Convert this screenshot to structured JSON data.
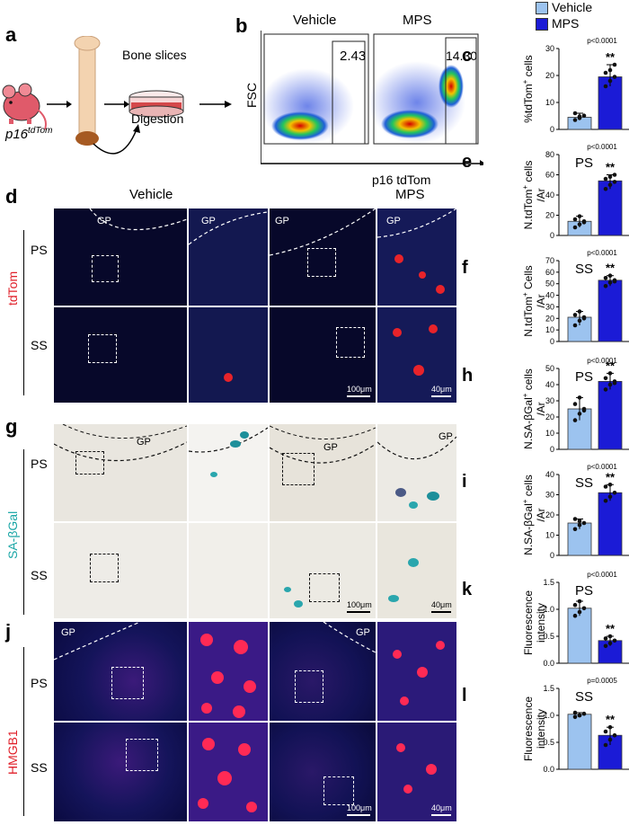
{
  "legend": {
    "vehicle": "Vehicle",
    "mps": "MPS",
    "vehicle_color": "#9cc3ef",
    "mps_color": "#1b1bd6"
  },
  "panel_a": {
    "label": "a",
    "mouse": "p16",
    "mouse_sup": "tdTom",
    "bone_slices": "Bone slices",
    "digestion": "Digestion"
  },
  "panel_b": {
    "label": "b",
    "vehicle_title": "Vehicle",
    "mps_title": "MPS",
    "vehicle_gate": "2.43",
    "mps_gate": "14.30",
    "y_axis": "FSC",
    "x_axis": "p16 tdTom"
  },
  "panel_d": {
    "label": "d",
    "vehicle_title": "Vehicle",
    "mps_title": "MPS",
    "stain": "tdTom",
    "row1": "PS",
    "row2": "SS",
    "gp": "GP",
    "scale1": "100μm",
    "scale2": "40μm"
  },
  "panel_g": {
    "label": "g",
    "stain": "SA-βGal",
    "row1": "PS",
    "row2": "SS",
    "gp": "GP",
    "scale1": "100μm",
    "scale2": "40μm"
  },
  "panel_j": {
    "label": "j",
    "stain": "HMGB1",
    "row1": "PS",
    "row2": "SS",
    "gp": "GP",
    "scale1": "100μm",
    "scale2": "40μm"
  },
  "chart_data": [
    {
      "id": "c",
      "type": "bar",
      "categories": [
        "Vehicle",
        "MPS"
      ],
      "values": [
        4.5,
        19.5
      ],
      "ylabel_main": "%tdTom",
      "ylabel_sup": "+",
      "ylabel_suffix": " cells",
      "ylim": [
        0,
        30
      ],
      "yticks": [
        0,
        10,
        20,
        30
      ],
      "pvalue": "p<0.0001",
      "sig": "**",
      "subtitle": "",
      "points": [
        [
          3.5,
          4.2,
          5.1,
          6.0,
          4.8
        ],
        [
          16,
          18,
          19.5,
          21,
          22,
          24
        ]
      ]
    },
    {
      "id": "e",
      "type": "bar",
      "categories": [
        "Vehicle",
        "MPS"
      ],
      "values": [
        14,
        54
      ],
      "ylabel_main": "N.tdTom",
      "ylabel_sup": "+",
      "ylabel_suffix": " cells",
      "ylabel2": "/Ar",
      "ylim": [
        0,
        80
      ],
      "yticks": [
        0,
        20,
        40,
        60,
        80
      ],
      "pvalue": "p<0.0001",
      "sig": "**",
      "subtitle": "PS",
      "points": [
        [
          8,
          11,
          14,
          16,
          19,
          13
        ],
        [
          46,
          50,
          53,
          56,
          58,
          60
        ]
      ]
    },
    {
      "id": "f",
      "type": "bar",
      "categories": [
        "Vehicle",
        "MPS"
      ],
      "values": [
        21,
        53
      ],
      "ylabel_main": "N.tdTom",
      "ylabel_sup": "+",
      "ylabel_suffix": " Cells",
      "ylabel2": "/Ar",
      "ylim": [
        0,
        70
      ],
      "yticks": [
        0,
        10,
        20,
        30,
        40,
        50,
        60,
        70
      ],
      "pvalue": "p<0.0001",
      "sig": "**",
      "subtitle": "SS",
      "points": [
        [
          14,
          18,
          21,
          23,
          26,
          20
        ],
        [
          48,
          51,
          53,
          55,
          57,
          52
        ]
      ]
    },
    {
      "id": "h",
      "type": "bar",
      "categories": [
        "Vehicle",
        "MPS"
      ],
      "values": [
        25,
        42
      ],
      "ylabel_main": "N.SA-βGal",
      "ylabel_sup": "+",
      "ylabel_suffix": " cells",
      "ylabel2": "/Ar",
      "ylim": [
        0,
        50
      ],
      "yticks": [
        0,
        10,
        20,
        30,
        40,
        50
      ],
      "pvalue": "p<0.0001",
      "sig": "**",
      "subtitle": "PS",
      "points": [
        [
          18,
          22,
          25,
          28,
          32,
          24
        ],
        [
          37,
          40,
          42,
          44,
          47,
          41
        ]
      ]
    },
    {
      "id": "i",
      "type": "bar",
      "categories": [
        "Vehicle",
        "MPS"
      ],
      "values": [
        16,
        31
      ],
      "ylabel_main": "N.SA-βGal",
      "ylabel_sup": "+",
      "ylabel_suffix": " cells",
      "ylabel2": "/Ar",
      "ylim": [
        0,
        40
      ],
      "yticks": [
        0,
        10,
        20,
        30,
        40
      ],
      "pvalue": "p<0.0001",
      "sig": "**",
      "subtitle": "SS",
      "points": [
        [
          13,
          15,
          16,
          18,
          17
        ],
        [
          27,
          29,
          31,
          34,
          35
        ]
      ]
    },
    {
      "id": "k",
      "type": "bar",
      "categories": [
        "Vehicle",
        "MPS"
      ],
      "values": [
        1.02,
        0.42
      ],
      "ylabel_main": "Fluorescence",
      "ylabel2": "intensity",
      "ylim": [
        0,
        1.5
      ],
      "yticks": [
        0.0,
        0.5,
        1.0,
        1.5
      ],
      "pvalue": "p<0.0001",
      "sig": "**",
      "subtitle": "PS",
      "points": [
        [
          0.88,
          0.95,
          1.02,
          1.08,
          1.15
        ],
        [
          0.32,
          0.37,
          0.42,
          0.46,
          0.5
        ]
      ]
    },
    {
      "id": "l",
      "type": "bar",
      "categories": [
        "Vehicle",
        "MPS"
      ],
      "values": [
        1.02,
        0.63
      ],
      "ylabel_main": "Fluorescence",
      "ylabel2": "intensity",
      "ylim": [
        0,
        1.5
      ],
      "yticks": [
        0.0,
        0.5,
        1.0,
        1.5
      ],
      "pvalue": "p=0.0005",
      "sig": "**",
      "subtitle": "SS",
      "points": [
        [
          0.97,
          1.0,
          1.03,
          1.05,
          1.0
        ],
        [
          0.45,
          0.55,
          0.63,
          0.7,
          0.78
        ]
      ]
    }
  ]
}
